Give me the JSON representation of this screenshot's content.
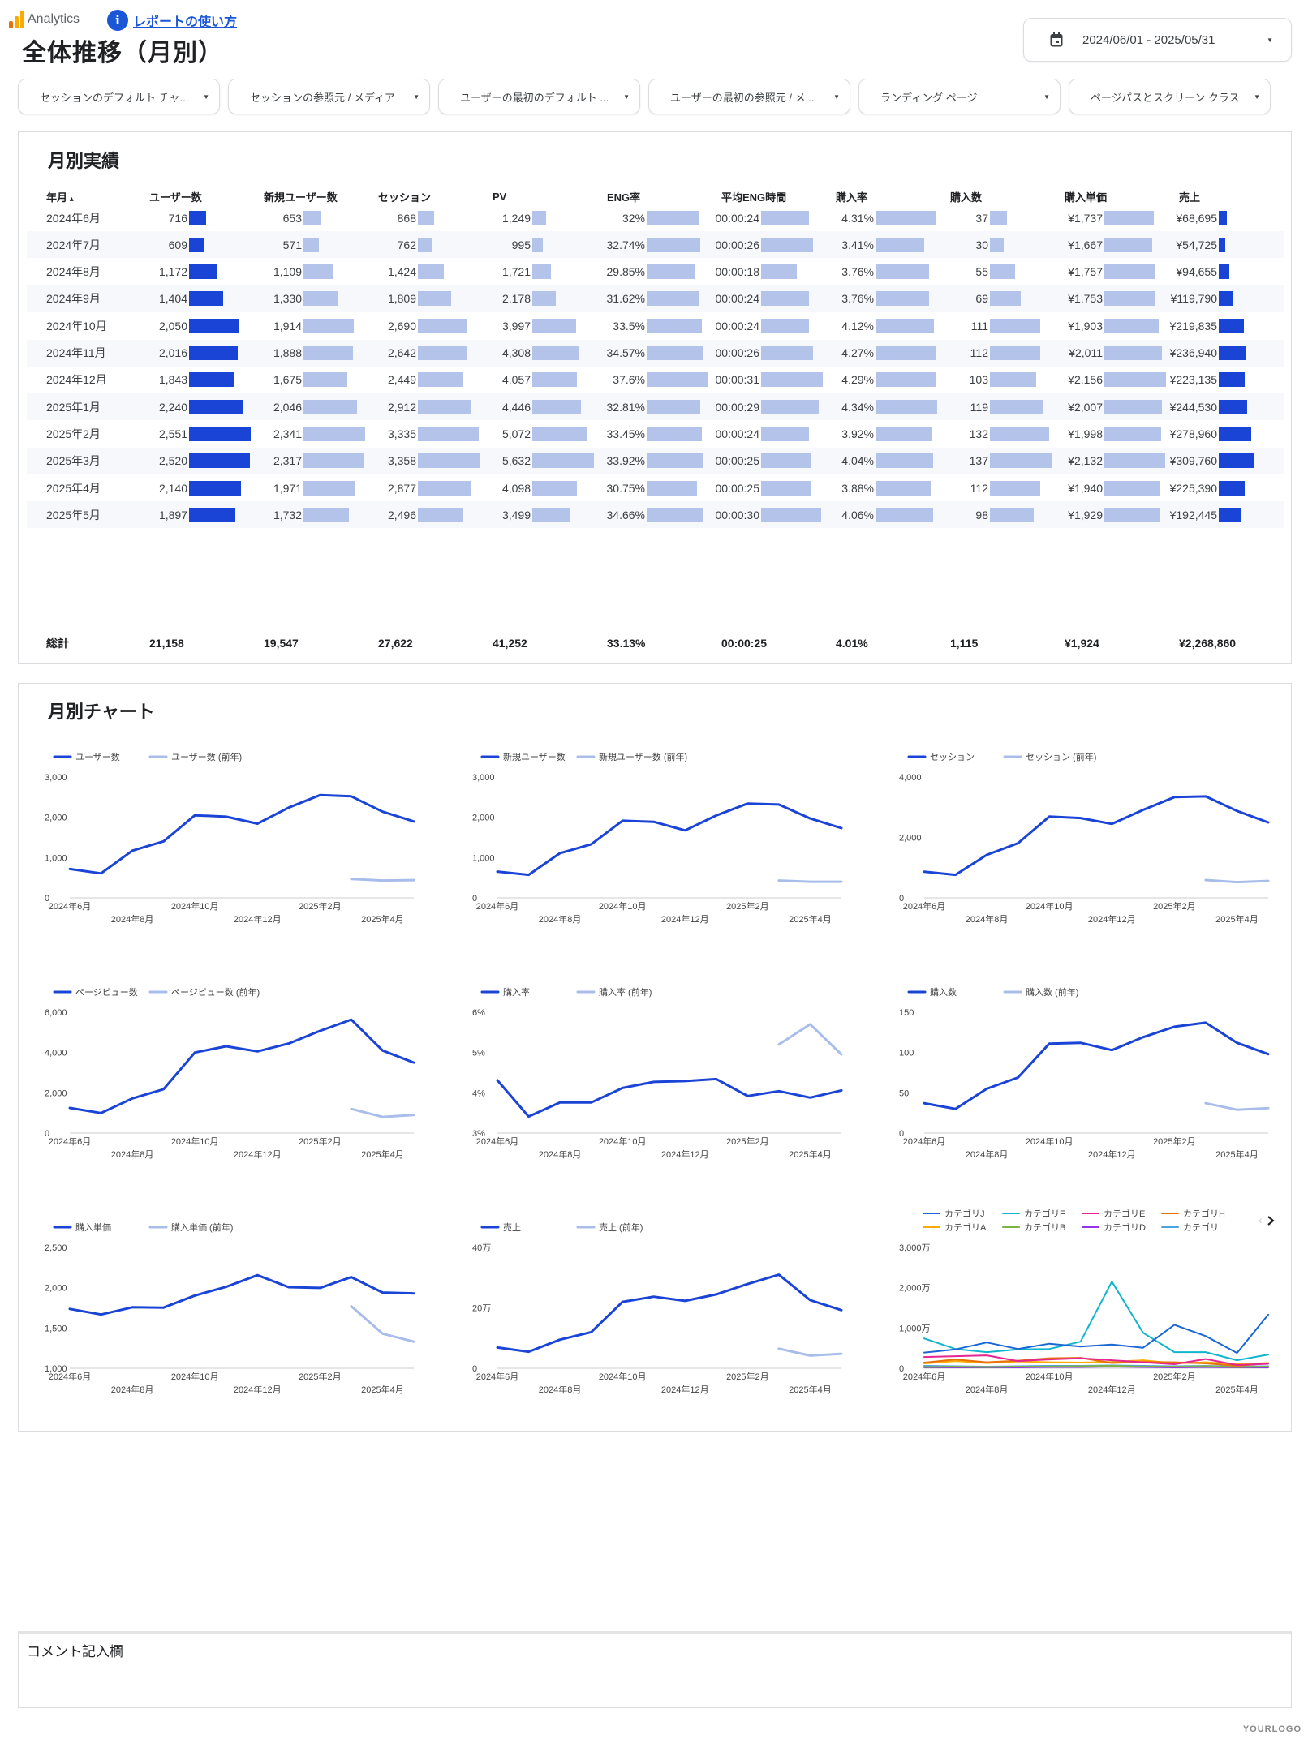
{
  "header": {
    "app_name": "Analytics",
    "help_link": "レポートの使い方",
    "page_title": "全体推移（月別）",
    "date_range": "2024/06/01 - 2025/05/31"
  },
  "filters": [
    "セッションのデフォルト チャ...",
    "セッションの参照元 / メディア",
    "ユーザーの最初のデフォルト ...",
    "ユーザーの最初の参照元 / メ...",
    "ランディング ページ",
    "ページパスとスクリーン クラス"
  ],
  "table": {
    "title": "月別実績",
    "columns": [
      "年月",
      "ユーザー数",
      "新規ユーザー数",
      "セッション",
      "PV",
      "ENG率",
      "平均ENG時間",
      "購入率",
      "購入数",
      "購入単価",
      "売上"
    ],
    "rows": [
      [
        "2024年6月",
        "716",
        "653",
        "868",
        "1,249",
        "32%",
        "00:00:24",
        "4.31%",
        "37",
        "¥1,737",
        "¥68,695"
      ],
      [
        "2024年7月",
        "609",
        "571",
        "762",
        "995",
        "32.74%",
        "00:00:26",
        "3.41%",
        "30",
        "¥1,667",
        "¥54,725"
      ],
      [
        "2024年8月",
        "1,172",
        "1,109",
        "1,424",
        "1,721",
        "29.85%",
        "00:00:18",
        "3.76%",
        "55",
        "¥1,757",
        "¥94,655"
      ],
      [
        "2024年9月",
        "1,404",
        "1,330",
        "1,809",
        "2,178",
        "31.62%",
        "00:00:24",
        "3.76%",
        "69",
        "¥1,753",
        "¥119,790"
      ],
      [
        "2024年10月",
        "2,050",
        "1,914",
        "2,690",
        "3,997",
        "33.5%",
        "00:00:24",
        "4.12%",
        "111",
        "¥1,903",
        "¥219,835"
      ],
      [
        "2024年11月",
        "2,016",
        "1,888",
        "2,642",
        "4,308",
        "34.57%",
        "00:00:26",
        "4.27%",
        "112",
        "¥2,011",
        "¥236,940"
      ],
      [
        "2024年12月",
        "1,843",
        "1,675",
        "2,449",
        "4,057",
        "37.6%",
        "00:00:31",
        "4.29%",
        "103",
        "¥2,156",
        "¥223,135"
      ],
      [
        "2025年1月",
        "2,240",
        "2,046",
        "2,912",
        "4,446",
        "32.81%",
        "00:00:29",
        "4.34%",
        "119",
        "¥2,007",
        "¥244,530"
      ],
      [
        "2025年2月",
        "2,551",
        "2,341",
        "3,335",
        "5,072",
        "33.45%",
        "00:00:24",
        "3.92%",
        "132",
        "¥1,998",
        "¥278,960"
      ],
      [
        "2025年3月",
        "2,520",
        "2,317",
        "3,358",
        "5,632",
        "33.92%",
        "00:00:25",
        "4.04%",
        "137",
        "¥2,132",
        "¥309,760"
      ],
      [
        "2025年4月",
        "2,140",
        "1,971",
        "2,877",
        "4,098",
        "30.75%",
        "00:00:25",
        "3.88%",
        "112",
        "¥1,940",
        "¥225,390"
      ],
      [
        "2025年5月",
        "1,897",
        "1,732",
        "2,496",
        "3,499",
        "34.66%",
        "00:00:30",
        "4.06%",
        "98",
        "¥1,929",
        "¥192,445"
      ]
    ],
    "total": [
      "総計",
      "21,158",
      "19,547",
      "27,622",
      "41,252",
      "33.13%",
      "00:00:25",
      "4.01%",
      "1,115",
      "¥1,924",
      "¥2,268,860"
    ],
    "bar_colors": {
      "primary": "#1a44d6",
      "secondary": "#b4c3ea"
    }
  },
  "charts_section": {
    "title": "月別チャート"
  },
  "chart_data": [
    {
      "type": "line",
      "legend": [
        "ユーザー数",
        "ユーザー数 (前年)"
      ],
      "ylim": [
        0,
        3000
      ],
      "yticks": [
        0,
        1000,
        2000,
        3000
      ],
      "ytick_labels": [
        "0",
        "1,000",
        "2,000",
        "3,000"
      ],
      "series": [
        {
          "name": "ユーザー数",
          "color": "#1a44d6",
          "values": [
            716,
            609,
            1172,
            1404,
            2050,
            2016,
            1843,
            2240,
            2551,
            2520,
            2140,
            1897
          ]
        },
        {
          "name": "ユーザー数 (前年)",
          "color": "#a9bdea",
          "values": [
            null,
            null,
            null,
            null,
            null,
            null,
            null,
            null,
            null,
            470,
            430,
            440
          ]
        }
      ]
    },
    {
      "type": "line",
      "legend": [
        "新規ユーザー数",
        "新規ユーザー数 (前年)"
      ],
      "ylim": [
        0,
        3000
      ],
      "yticks": [
        0,
        1000,
        2000,
        3000
      ],
      "ytick_labels": [
        "0",
        "1,000",
        "2,000",
        "3,000"
      ],
      "series": [
        {
          "name": "新規ユーザー数",
          "color": "#1a44d6",
          "values": [
            653,
            571,
            1109,
            1330,
            1914,
            1888,
            1675,
            2046,
            2341,
            2317,
            1971,
            1732
          ]
        },
        {
          "name": "新規ユーザー数 (前年)",
          "color": "#a9bdea",
          "values": [
            null,
            null,
            null,
            null,
            null,
            null,
            null,
            null,
            null,
            430,
            400,
            400
          ]
        }
      ]
    },
    {
      "type": "line",
      "legend": [
        "セッション",
        "セッション (前年)"
      ],
      "ylim": [
        0,
        4000
      ],
      "yticks": [
        0,
        2000,
        4000
      ],
      "ytick_labels": [
        "0",
        "2,000",
        "4,000"
      ],
      "series": [
        {
          "name": "セッション",
          "color": "#1a44d6",
          "values": [
            868,
            762,
            1424,
            1809,
            2690,
            2642,
            2449,
            2912,
            3335,
            3358,
            2877,
            2496
          ]
        },
        {
          "name": "セッション (前年)",
          "color": "#a9bdea",
          "values": [
            null,
            null,
            null,
            null,
            null,
            null,
            null,
            null,
            null,
            590,
            520,
            560
          ]
        }
      ]
    },
    {
      "type": "line",
      "legend": [
        "ページビュー数",
        "ページビュー数 (前年)"
      ],
      "ylim": [
        0,
        6000
      ],
      "yticks": [
        0,
        2000,
        4000,
        6000
      ],
      "ytick_labels": [
        "0",
        "2,000",
        "4,000",
        "6,000"
      ],
      "series": [
        {
          "name": "ページビュー数",
          "color": "#1a44d6",
          "values": [
            1249,
            995,
            1721,
            2178,
            3997,
            4308,
            4057,
            4446,
            5072,
            5632,
            4098,
            3499
          ]
        },
        {
          "name": "ページビュー数 (前年)",
          "color": "#a9bdea",
          "values": [
            null,
            null,
            null,
            null,
            null,
            null,
            null,
            null,
            null,
            1200,
            800,
            900
          ]
        }
      ]
    },
    {
      "type": "line",
      "legend": [
        "購入率",
        "購入率 (前年)"
      ],
      "ylim": [
        3,
        6
      ],
      "yticks": [
        3,
        4,
        5,
        6
      ],
      "ytick_labels": [
        "3%",
        "4%",
        "5%",
        "6%"
      ],
      "series": [
        {
          "name": "購入率",
          "color": "#1a44d6",
          "values": [
            4.31,
            3.41,
            3.76,
            3.76,
            4.12,
            4.27,
            4.29,
            4.34,
            3.92,
            4.04,
            3.88,
            4.06
          ]
        },
        {
          "name": "購入率 (前年)",
          "color": "#a9bdea",
          "values": [
            null,
            null,
            null,
            null,
            null,
            null,
            null,
            null,
            null,
            5.2,
            5.7,
            4.95
          ]
        }
      ]
    },
    {
      "type": "line",
      "legend": [
        "購入数",
        "購入数 (前年)"
      ],
      "ylim": [
        0,
        150
      ],
      "yticks": [
        0,
        50,
        100,
        150
      ],
      "ytick_labels": [
        "0",
        "50",
        "100",
        "150"
      ],
      "series": [
        {
          "name": "購入数",
          "color": "#1a44d6",
          "values": [
            37,
            30,
            55,
            69,
            111,
            112,
            103,
            119,
            132,
            137,
            112,
            98
          ]
        },
        {
          "name": "購入数 (前年)",
          "color": "#a9bdea",
          "values": [
            null,
            null,
            null,
            null,
            null,
            null,
            null,
            null,
            null,
            37,
            29,
            31
          ]
        }
      ]
    },
    {
      "type": "line",
      "legend": [
        "購入単価",
        "購入単価 (前年)"
      ],
      "ylim": [
        1000,
        2500
      ],
      "yticks": [
        1000,
        1500,
        2000,
        2500
      ],
      "ytick_labels": [
        "1,000",
        "1,500",
        "2,000",
        "2,500"
      ],
      "series": [
        {
          "name": "購入単価",
          "color": "#1a44d6",
          "values": [
            1737,
            1667,
            1757,
            1753,
            1903,
            2011,
            2156,
            2007,
            1998,
            2132,
            1940,
            1929
          ]
        },
        {
          "name": "購入単価 (前年)",
          "color": "#a9bdea",
          "values": [
            null,
            null,
            null,
            null,
            null,
            null,
            null,
            null,
            null,
            1770,
            1430,
            1330
          ]
        }
      ]
    },
    {
      "type": "line",
      "legend": [
        "売上",
        "売上 (前年)"
      ],
      "ylim": [
        0,
        400000
      ],
      "yticks": [
        0,
        200000,
        400000
      ],
      "ytick_labels": [
        "0",
        "20万",
        "40万"
      ],
      "series": [
        {
          "name": "売上",
          "color": "#1a44d6",
          "values": [
            68695,
            54725,
            94655,
            119790,
            219835,
            236940,
            223135,
            244530,
            278960,
            309760,
            225390,
            192445
          ]
        },
        {
          "name": "売上 (前年)",
          "color": "#a9bdea",
          "values": [
            null,
            null,
            null,
            null,
            null,
            null,
            null,
            null,
            null,
            65000,
            42000,
            48000
          ]
        }
      ]
    },
    {
      "type": "line",
      "legend": [
        "カテゴリJ",
        "カテゴリF",
        "カテゴリE",
        "カテゴリH",
        "カテゴリA",
        "カテゴリB",
        "カテゴリD",
        "カテゴリI"
      ],
      "ylim": [
        0,
        3000
      ],
      "yticks": [
        0,
        1000,
        2000,
        3000
      ],
      "ytick_labels": [
        "0",
        "1,000万",
        "2,000万",
        "3,000万"
      ],
      "unit": "万",
      "series": [
        {
          "name": "カテゴリJ",
          "color": "#1967d2",
          "values": [
            390,
            470,
            640,
            480,
            610,
            540,
            590,
            510,
            1080,
            800,
            380,
            1330
          ]
        },
        {
          "name": "カテゴリF",
          "color": "#12b5cb",
          "values": [
            740,
            480,
            400,
            470,
            480,
            660,
            2150,
            880,
            400,
            400,
            200,
            340
          ]
        },
        {
          "name": "カテゴリE",
          "color": "#e52592",
          "values": [
            280,
            300,
            320,
            180,
            220,
            250,
            200,
            150,
            100,
            230,
            80,
            110
          ]
        },
        {
          "name": "カテゴリH",
          "color": "#e8710a",
          "values": [
            140,
            220,
            150,
            190,
            250,
            260,
            130,
            160,
            150,
            120,
            60,
            120
          ]
        },
        {
          "name": "カテゴリA",
          "color": "#f9ab00",
          "values": [
            120,
            180,
            130,
            170,
            150,
            140,
            160,
            200,
            120,
            150,
            100,
            130
          ]
        },
        {
          "name": "カテゴリB",
          "color": "#7cb342",
          "values": [
            30,
            40,
            30,
            40,
            40,
            50,
            60,
            40,
            40,
            50,
            30,
            40
          ]
        },
        {
          "name": "カテゴリD",
          "color": "#9334e6",
          "values": [
            20,
            20,
            20,
            20,
            30,
            30,
            40,
            30,
            20,
            30,
            20,
            20
          ]
        },
        {
          "name": "カテゴリI",
          "color": "#4ba3e0",
          "values": [
            60,
            50,
            40,
            50,
            60,
            60,
            70,
            60,
            50,
            60,
            40,
            50
          ]
        }
      ]
    }
  ],
  "x_labels_shown": [
    {
      "index": 0,
      "label": "2024年6月"
    },
    {
      "index": 2,
      "label": "2024年8月"
    },
    {
      "index": 4,
      "label": "2024年10月"
    },
    {
      "index": 6,
      "label": "2024年12月"
    },
    {
      "index": 8,
      "label": "2025年2月"
    },
    {
      "index": 10,
      "label": "2025年4月"
    }
  ],
  "comment": {
    "label": "コメント記入欄"
  },
  "watermark": "YOURLOGO"
}
